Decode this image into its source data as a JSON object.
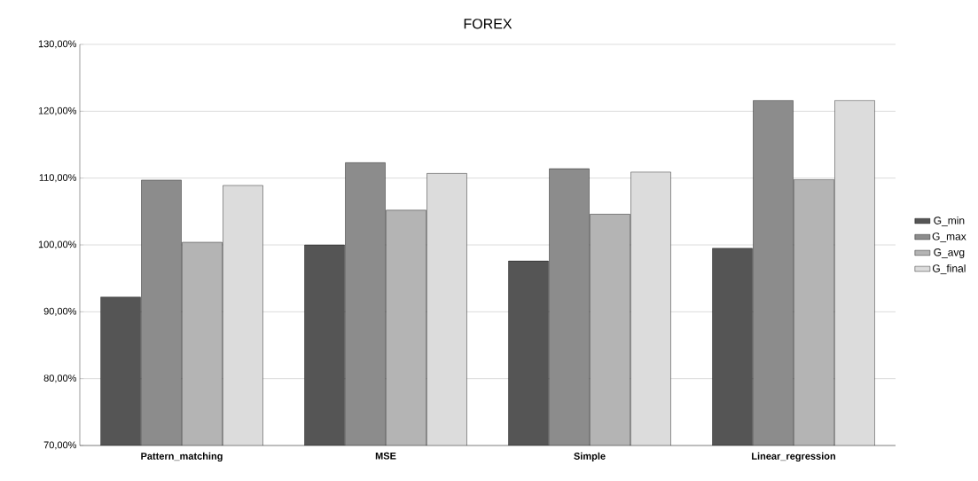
{
  "chart_data": {
    "type": "bar",
    "title": "FOREX",
    "categories": [
      "Pattern_matching",
      "MSE",
      "Simple",
      "Linear_regression"
    ],
    "series": [
      {
        "name": "G_min",
        "color": "#555555",
        "values": [
          92.2,
          100.0,
          97.6,
          99.5
        ]
      },
      {
        "name": "G_max",
        "color": "#8c8c8c",
        "values": [
          109.7,
          112.3,
          111.4,
          121.6
        ]
      },
      {
        "name": "G_avg",
        "color": "#b4b4b4",
        "values": [
          100.4,
          105.2,
          104.6,
          109.8
        ]
      },
      {
        "name": "G_final",
        "color": "#dcdcdc",
        "values": [
          108.9,
          110.7,
          110.9,
          121.6
        ]
      }
    ],
    "ylim": [
      70,
      130
    ],
    "yticks": [
      {
        "value": 70,
        "label": "70,00%"
      },
      {
        "value": 80,
        "label": "80,00%"
      },
      {
        "value": 90,
        "label": "90,00%"
      },
      {
        "value": 100,
        "label": "100,00%"
      },
      {
        "value": 110,
        "label": "110,00%"
      },
      {
        "value": 120,
        "label": "120,00%"
      },
      {
        "value": 130,
        "label": "130,00%"
      }
    ],
    "grid": "y",
    "legend": "right"
  }
}
